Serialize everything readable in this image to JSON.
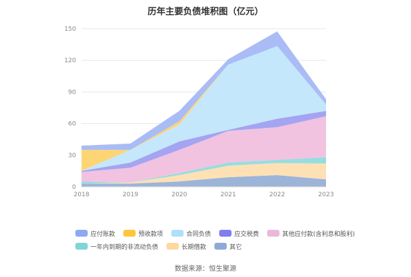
{
  "chart_data": {
    "type": "area",
    "stacked": true,
    "title": "历年主要负债堆积图（亿元）",
    "x": [
      "2018",
      "2019",
      "2020",
      "2021",
      "2022",
      "2023"
    ],
    "ylim": [
      0,
      150
    ],
    "yticks": [
      0,
      30,
      60,
      90,
      120,
      150
    ],
    "grid": true,
    "legend_position": "bottom",
    "series": [
      {
        "name": "其它",
        "color": "#9cb4d8",
        "values": [
          3,
          3,
          5,
          9,
          11,
          7
        ]
      },
      {
        "name": "长期借款",
        "color": "#fde1b5",
        "values": [
          0,
          1,
          6,
          11,
          11.5,
          15
        ]
      },
      {
        "name": "一年内到期的非流动负债",
        "color": "#96dde0",
        "values": [
          2,
          0,
          2,
          3,
          3,
          6
        ]
      },
      {
        "name": "其他应付款(含利息和股利)",
        "color": "#f1c3e0",
        "values": [
          9,
          14,
          22,
          30,
          31,
          39
        ]
      },
      {
        "name": "应交税费",
        "color": "#a4a4f2",
        "values": [
          1,
          5,
          8,
          1,
          8,
          5
        ]
      },
      {
        "name": "合同负债",
        "color": "#c4e7fb",
        "values": [
          0,
          12,
          16,
          62,
          69,
          6
        ]
      },
      {
        "name": "预收款项",
        "color": "#fdd574",
        "values": [
          20,
          0,
          3,
          0,
          0,
          0
        ]
      },
      {
        "name": "应付账款",
        "color": "#a9bcf5",
        "values": [
          4,
          6,
          10,
          5,
          14,
          5
        ]
      }
    ]
  },
  "legend": [
    [
      {
        "label": "应付账款",
        "color": "#8fa8f2"
      },
      {
        "label": "预收款项",
        "color": "#fdc63f"
      },
      {
        "label": "合同负债",
        "color": "#aee0f9"
      },
      {
        "label": "应交税费",
        "color": "#7f7ff0"
      },
      {
        "label": "其他应付款(含利息和股利)",
        "color": "#ecb8da"
      }
    ],
    [
      {
        "label": "一年内到期的非流动负债",
        "color": "#7ed6d8"
      },
      {
        "label": "长期借款",
        "color": "#fdd9a0"
      },
      {
        "label": "其它",
        "color": "#8eaad6"
      }
    ]
  ],
  "source": "数据来源：恒生聚源"
}
